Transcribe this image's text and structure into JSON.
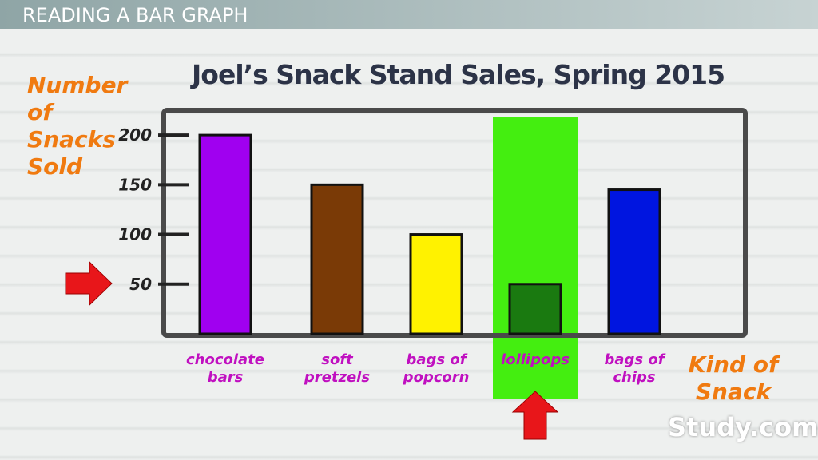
{
  "header": "READING A BAR GRAPH",
  "watermark": "Study.com",
  "chart_data": {
    "type": "bar",
    "title": "Joel’s Snack Stand Sales, Spring 2015",
    "y_label": "Number of Snacks Sold",
    "x_label": "Kind of Snack",
    "categories": [
      "chocolate bars",
      "soft pretzels",
      "bags of popcorn",
      "lollipops",
      "bags of chips"
    ],
    "values": [
      200,
      150,
      100,
      50,
      145
    ],
    "colors": [
      "#a000f0",
      "#7a3a06",
      "#fff200",
      "#1a7a10",
      "#0015e0"
    ],
    "ylim": [
      0,
      225
    ],
    "yticks": [
      50,
      100,
      150,
      200
    ]
  }
}
